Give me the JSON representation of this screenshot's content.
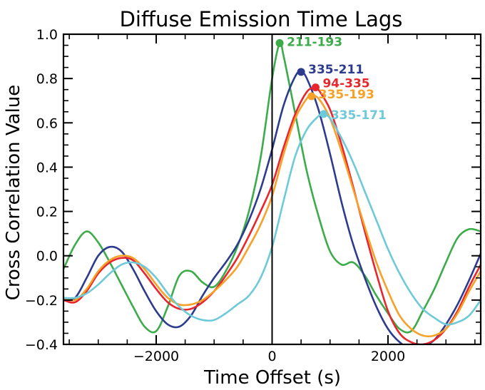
{
  "chart_data": {
    "type": "line",
    "title": "Diffuse Emission Time Lags",
    "xlabel": "Time Offset (s)",
    "ylabel": "Cross Correlation Value",
    "xlim": [
      -3600,
      3600
    ],
    "ylim": [
      -0.4,
      1.0
    ],
    "x_ticks": [
      -2000,
      0,
      2000
    ],
    "x_tick_labels": [
      "−2000",
      "0",
      "2000"
    ],
    "y_ticks": [
      -0.4,
      -0.2,
      0.0,
      0.2,
      0.4,
      0.6,
      0.8,
      1.0
    ],
    "y_tick_labels": [
      "−0.4",
      "−0.2",
      "0.0",
      "0.2",
      "0.4",
      "0.6",
      "0.8",
      "1.0"
    ],
    "grid": false,
    "series": [
      {
        "name": "211-193",
        "color": "#3cab4a",
        "peak": [
          130,
          0.96
        ],
        "x": [
          -3600,
          -3400,
          -3200,
          -3000,
          -2800,
          -2600,
          -2400,
          -2200,
          -2000,
          -1800,
          -1600,
          -1400,
          -1200,
          -1000,
          -800,
          -600,
          -400,
          -200,
          0,
          130,
          200,
          400,
          600,
          800,
          1000,
          1200,
          1400,
          1600,
          1800,
          2000,
          2200,
          2400,
          2600,
          2800,
          3000,
          3200,
          3400,
          3600
        ],
        "y": [
          -0.06,
          0.05,
          0.11,
          0.06,
          -0.03,
          -0.13,
          -0.23,
          -0.32,
          -0.34,
          -0.23,
          -0.09,
          -0.07,
          -0.12,
          -0.14,
          -0.07,
          0.04,
          0.2,
          0.44,
          0.8,
          0.96,
          0.9,
          0.64,
          0.38,
          0.18,
          0.02,
          -0.04,
          -0.03,
          -0.09,
          -0.18,
          -0.26,
          -0.33,
          -0.34,
          -0.25,
          -0.15,
          -0.03,
          0.08,
          0.12,
          0.11
        ]
      },
      {
        "name": "335-211",
        "color": "#2d3b8e",
        "peak": [
          500,
          0.83
        ],
        "x": [
          -3600,
          -3400,
          -3200,
          -3000,
          -2800,
          -2600,
          -2400,
          -2200,
          -2000,
          -1800,
          -1600,
          -1400,
          -1200,
          -1000,
          -800,
          -600,
          -400,
          -200,
          0,
          200,
          400,
          500,
          600,
          800,
          1000,
          1200,
          1400,
          1600,
          1800,
          2000,
          2200,
          2400,
          2600,
          2800,
          3000,
          3200,
          3400,
          3600
        ],
        "y": [
          -0.2,
          -0.19,
          -0.1,
          0.0,
          0.04,
          0.02,
          -0.06,
          -0.16,
          -0.25,
          -0.31,
          -0.32,
          -0.27,
          -0.18,
          -0.1,
          -0.03,
          0.05,
          0.16,
          0.3,
          0.48,
          0.68,
          0.81,
          0.83,
          0.8,
          0.66,
          0.46,
          0.24,
          0.05,
          -0.1,
          -0.23,
          -0.33,
          -0.39,
          -0.42,
          -0.41,
          -0.38,
          -0.31,
          -0.22,
          -0.11,
          0.01
        ]
      },
      {
        "name": "94-335",
        "color": "#e8262d",
        "peak": [
          750,
          0.76
        ],
        "x": [
          -3600,
          -3400,
          -3200,
          -3000,
          -2800,
          -2600,
          -2400,
          -2200,
          -2000,
          -1800,
          -1600,
          -1400,
          -1200,
          -1000,
          -800,
          -600,
          -400,
          -200,
          0,
          200,
          400,
          600,
          750,
          800,
          1000,
          1200,
          1400,
          1600,
          1800,
          2000,
          2200,
          2400,
          2600,
          2800,
          3000,
          3200,
          3400,
          3600
        ],
        "y": [
          -0.2,
          -0.21,
          -0.16,
          -0.08,
          -0.03,
          -0.01,
          -0.02,
          -0.08,
          -0.15,
          -0.21,
          -0.24,
          -0.24,
          -0.21,
          -0.16,
          -0.09,
          -0.01,
          0.09,
          0.2,
          0.32,
          0.49,
          0.64,
          0.74,
          0.76,
          0.75,
          0.66,
          0.5,
          0.31,
          0.11,
          -0.08,
          -0.25,
          -0.35,
          -0.39,
          -0.4,
          -0.38,
          -0.33,
          -0.25,
          -0.14,
          -0.04
        ]
      },
      {
        "name": "335-193",
        "color": "#f7a128",
        "peak": [
          680,
          0.72
        ],
        "x": [
          -3600,
          -3400,
          -3200,
          -3000,
          -2800,
          -2600,
          -2400,
          -2200,
          -2000,
          -1800,
          -1600,
          -1400,
          -1200,
          -1000,
          -800,
          -600,
          -400,
          -200,
          0,
          200,
          400,
          600,
          680,
          800,
          1000,
          1200,
          1400,
          1600,
          1800,
          2000,
          2200,
          2400,
          2600,
          2800,
          3000,
          3200,
          3400,
          3600
        ],
        "y": [
          -0.19,
          -0.2,
          -0.15,
          -0.07,
          -0.02,
          0.0,
          -0.01,
          -0.06,
          -0.13,
          -0.19,
          -0.22,
          -0.22,
          -0.2,
          -0.16,
          -0.11,
          -0.05,
          0.04,
          0.14,
          0.27,
          0.46,
          0.62,
          0.71,
          0.72,
          0.71,
          0.62,
          0.47,
          0.3,
          0.13,
          -0.03,
          -0.16,
          -0.27,
          -0.33,
          -0.36,
          -0.36,
          -0.33,
          -0.26,
          -0.16,
          -0.07
        ]
      },
      {
        "name": "335-171",
        "color": "#6ec9d8",
        "peak": [
          890,
          0.64
        ],
        "x": [
          -3600,
          -3400,
          -3200,
          -3000,
          -2800,
          -2600,
          -2400,
          -2200,
          -2000,
          -1800,
          -1600,
          -1400,
          -1200,
          -1000,
          -800,
          -600,
          -400,
          -200,
          0,
          200,
          400,
          600,
          800,
          890,
          1000,
          1200,
          1400,
          1600,
          1800,
          2000,
          2200,
          2400,
          2600,
          2800,
          3000,
          3200,
          3400,
          3600
        ],
        "y": [
          -0.19,
          -0.19,
          -0.17,
          -0.13,
          -0.08,
          -0.04,
          -0.03,
          -0.05,
          -0.1,
          -0.17,
          -0.23,
          -0.27,
          -0.29,
          -0.29,
          -0.26,
          -0.22,
          -0.18,
          -0.1,
          0.04,
          0.25,
          0.45,
          0.57,
          0.63,
          0.64,
          0.62,
          0.53,
          0.42,
          0.29,
          0.16,
          0.03,
          -0.08,
          -0.17,
          -0.24,
          -0.28,
          -0.31,
          -0.3,
          -0.27,
          -0.2
        ]
      }
    ]
  }
}
